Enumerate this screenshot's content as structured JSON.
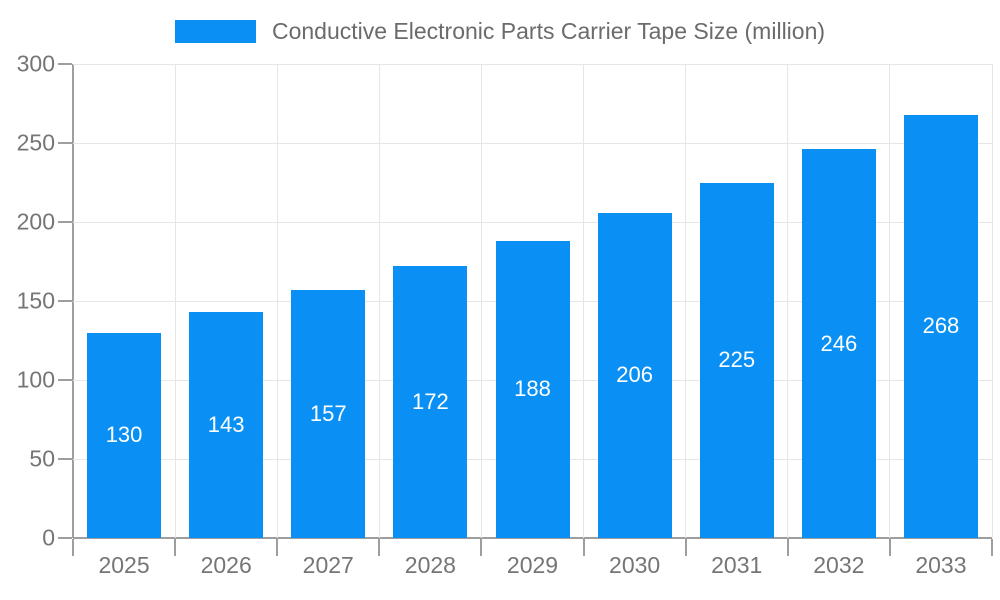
{
  "legend": {
    "label": "Conductive Electronic Parts Carrier Tape Size (million)",
    "swatch_color": "#0a90f5"
  },
  "chart_data": {
    "type": "bar",
    "title": "Conductive Electronic Parts Carrier Tape Size (million)",
    "categories": [
      "2025",
      "2026",
      "2027",
      "2028",
      "2029",
      "2030",
      "2031",
      "2032",
      "2033"
    ],
    "values": [
      130,
      143,
      157,
      172,
      188,
      206,
      225,
      246,
      268
    ],
    "xlabel": "",
    "ylabel": "",
    "ylim": [
      0,
      300
    ],
    "yticks": [
      0,
      50,
      100,
      150,
      200,
      250,
      300
    ],
    "grid": true,
    "legend_position": "top",
    "bar_color": "#0a90f5",
    "value_label_color": "#ffffff",
    "axis_color": "#9e9e9e",
    "grid_color": "#e6e6e6",
    "tick_label_color": "#757575"
  }
}
